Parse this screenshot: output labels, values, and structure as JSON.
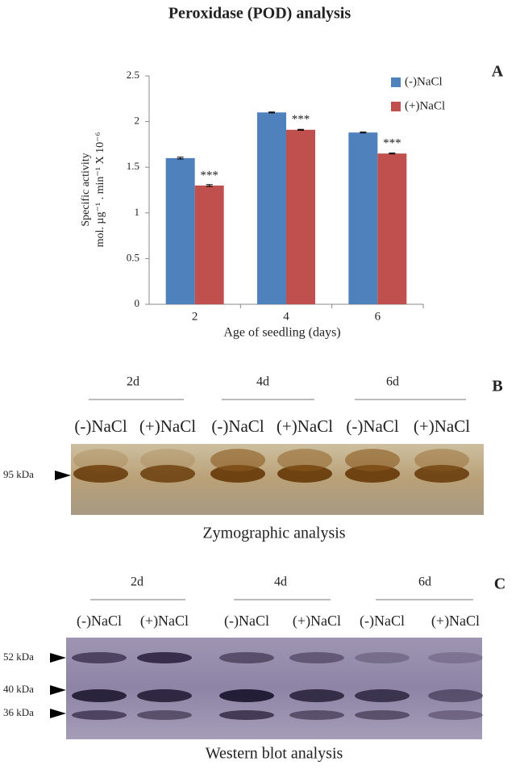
{
  "title": "Peroxidase (POD) analysis",
  "chart_data": {
    "type": "bar",
    "panel": "A",
    "y_label": [
      "Specific activity",
      "mol. µg⁻¹ . min⁻¹ X 10⁻⁶"
    ],
    "x_label": "Age of seedling (days)",
    "categories": [
      "2",
      "4",
      "6"
    ],
    "series": [
      {
        "name": "(-)NaCl",
        "color": "#4f81bd",
        "values": [
          1.6,
          2.1,
          1.88
        ],
        "errors": [
          0.01,
          0.005,
          0.005
        ]
      },
      {
        "name": "(+)NaCl",
        "color": "#c0504d",
        "values": [
          1.3,
          1.91,
          1.65
        ],
        "errors": [
          0.01,
          0.005,
          0.005
        ],
        "annotations": [
          "***",
          "***",
          "***"
        ]
      }
    ],
    "ylim": [
      0,
      2.5
    ],
    "yticks": [
      0,
      0.5,
      1,
      1.5,
      2,
      2.5
    ],
    "grid": false,
    "legend": "top-right"
  },
  "zymogram": {
    "panel": "B",
    "days": [
      "2d",
      "4d",
      "6d"
    ],
    "lanes": [
      "(-)NaCl",
      "(+)NaCl",
      "(-)NaCl",
      "(+)NaCl",
      "(-)NaCl",
      "(+)NaCl"
    ],
    "markers": [
      "95 kDa"
    ],
    "caption": "Zymographic analysis"
  },
  "western": {
    "panel": "C",
    "days": [
      "2d",
      "4d",
      "6d"
    ],
    "lanes": [
      "(-)NaCl",
      "(+)NaCl",
      "(-)NaCl",
      "(+)NaCl",
      "(-)NaCl",
      "(+)NaCl"
    ],
    "markers": [
      "52 kDa",
      "40 kDa",
      "36 kDa"
    ],
    "caption": "Western blot analysis"
  }
}
